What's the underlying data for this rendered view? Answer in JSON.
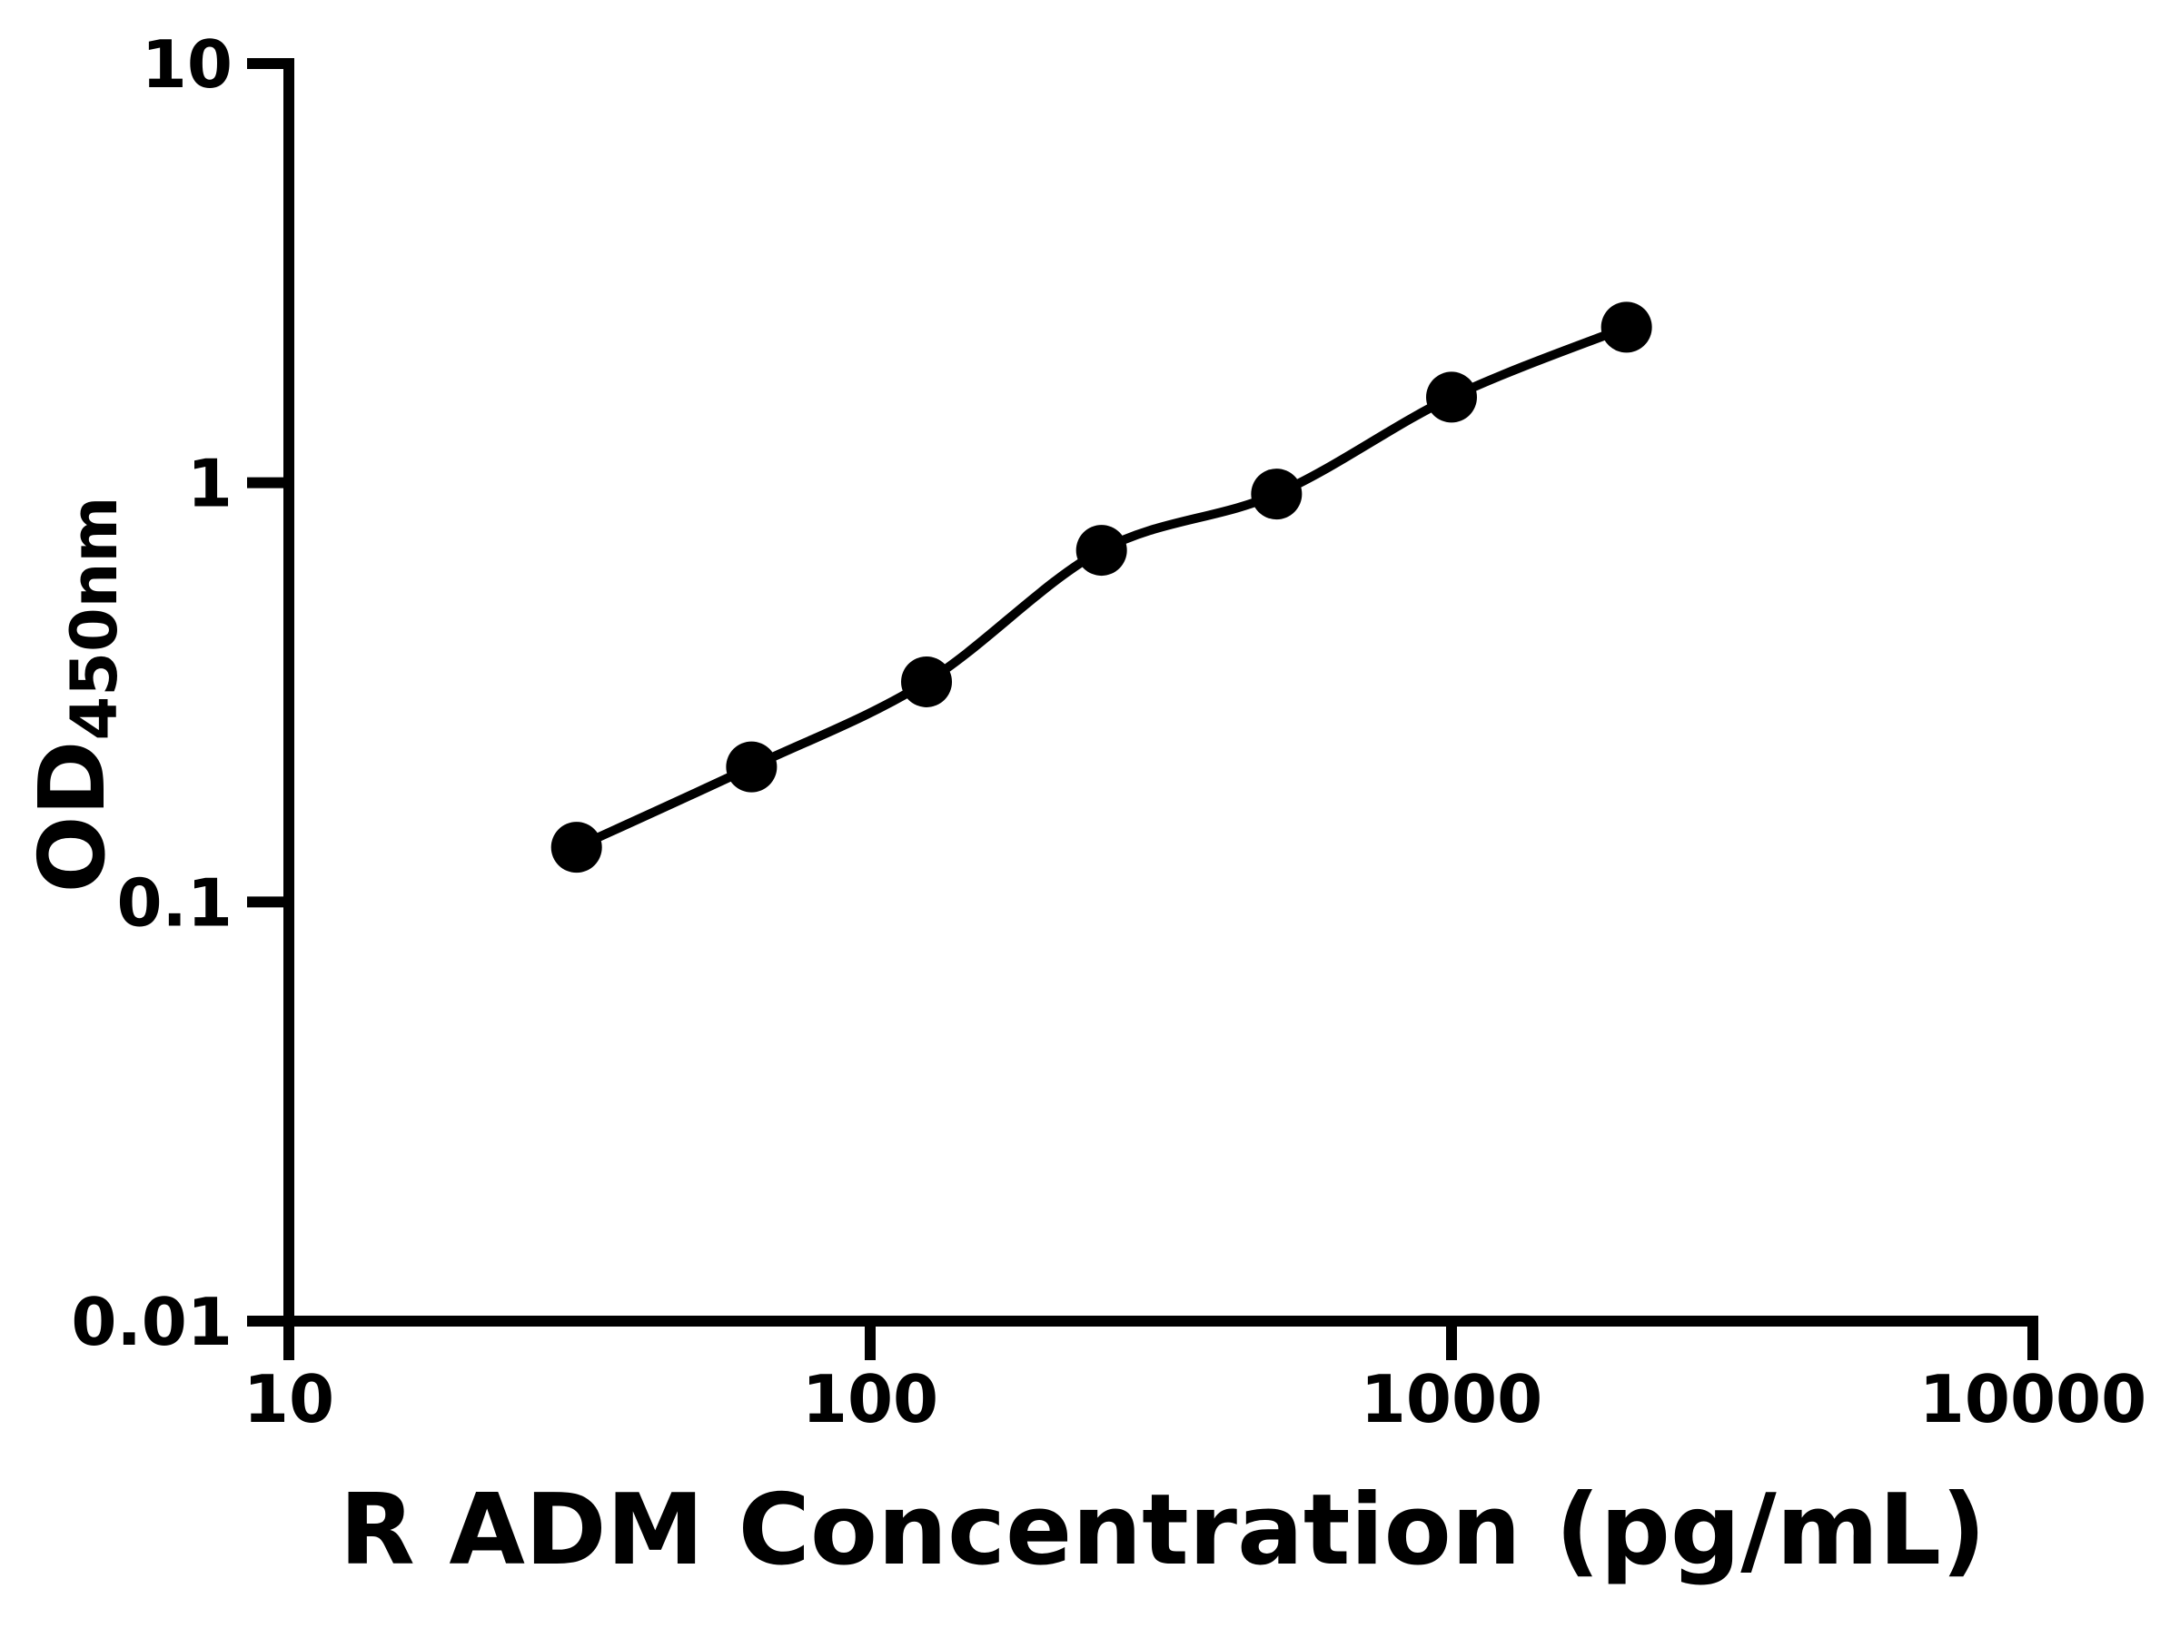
{
  "chart_data": {
    "type": "scatter",
    "subtype": "line-through-points-log-log",
    "title": "",
    "xlabel": "R ADM Concentration (pg/mL)",
    "ylabel_main": "OD",
    "ylabel_sub": "450nm",
    "xscale": "log",
    "yscale": "log",
    "xlim": [
      10,
      10000
    ],
    "ylim": [
      0.01,
      10
    ],
    "grid": false,
    "legend": "none",
    "marker_color": "#000000",
    "line_color": "#000000",
    "background_color": "#ffffff",
    "x": [
      31.25,
      62.5,
      125,
      250,
      500,
      1000,
      2000
    ],
    "y": [
      0.135,
      0.21,
      0.335,
      0.69,
      0.94,
      1.6,
      2.35
    ],
    "x_ticks": [
      {
        "value": 10,
        "label": "10"
      },
      {
        "value": 100,
        "label": "100"
      },
      {
        "value": 1000,
        "label": "1000"
      },
      {
        "value": 10000,
        "label": "10000"
      }
    ],
    "y_ticks": [
      {
        "value": 10,
        "label": "10"
      },
      {
        "value": 1,
        "label": "1"
      },
      {
        "value": 0.1,
        "label": "0.1"
      },
      {
        "value": 0.01,
        "label": "0.01"
      }
    ]
  }
}
